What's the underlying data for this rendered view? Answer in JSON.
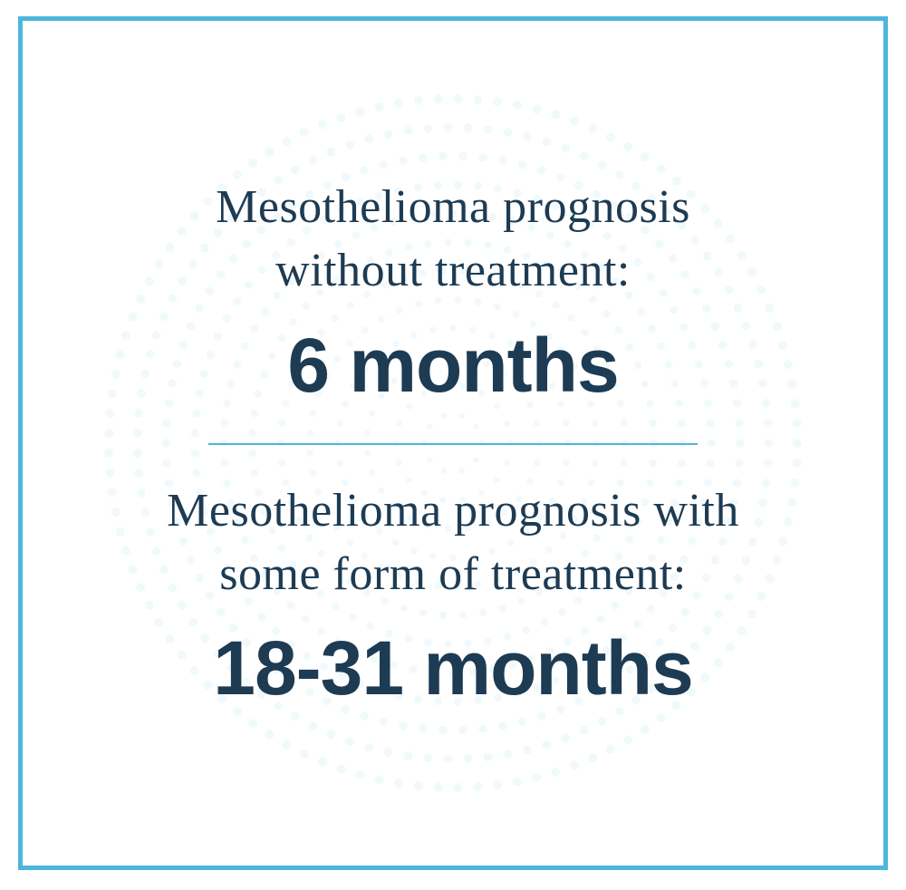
{
  "card": {
    "border_color": "#4db6dd",
    "background_color": "#ffffff",
    "divider_color": "#4db6dd",
    "text_color": "#1d3b53",
    "dots_color": "#4db6dd",
    "label_fontsize": 52,
    "value_fontsize": 84,
    "stats": [
      {
        "label_line1": "Mesothelioma prognosis",
        "label_line2": "without treatment:",
        "value": "6 months"
      },
      {
        "label_line1": "Mesothelioma prognosis with",
        "label_line2": "some form of treatment:",
        "value": "18-31 months"
      }
    ]
  }
}
